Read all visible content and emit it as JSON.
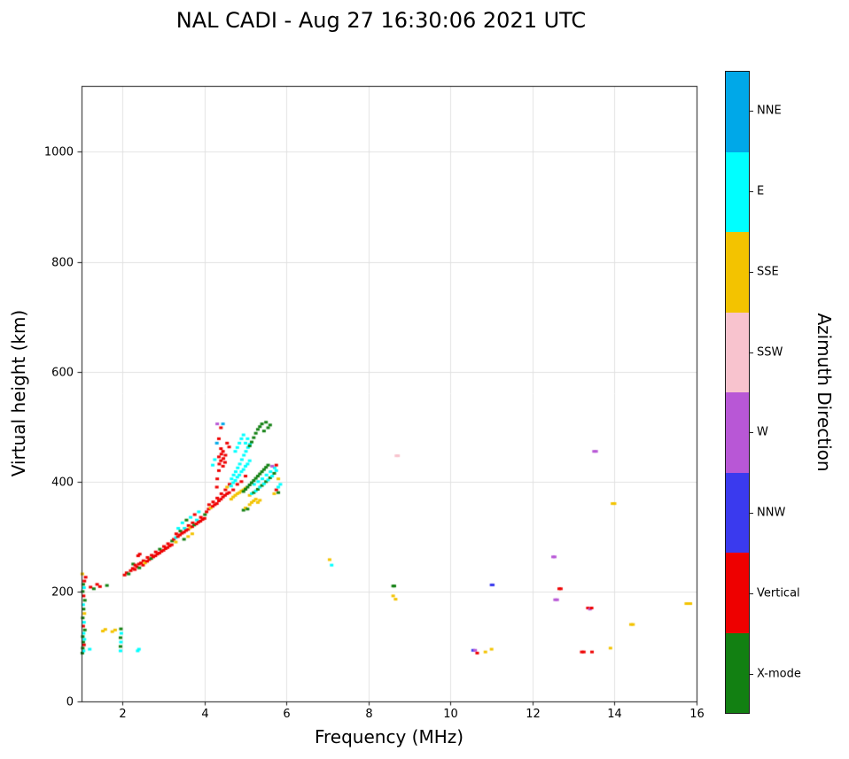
{
  "chart_data": {
    "type": "scatter",
    "title": "NAL CADI - Aug 27 16:30:06 2021 UTC",
    "xlabel": "Frequency (MHz)",
    "ylabel": "Virtual height (km)",
    "xlim": [
      1,
      16
    ],
    "ylim": [
      0,
      1120
    ],
    "xticks": [
      2,
      4,
      6,
      8,
      10,
      12,
      14,
      16
    ],
    "yticks": [
      0,
      200,
      400,
      600,
      800,
      1000
    ],
    "grid": true,
    "grid_color": "#e2e2e2",
    "axis_color": "#1a1a1a",
    "colorbar": {
      "label": "Azimuth Direction",
      "categories": [
        {
          "name": "NNE",
          "color": "#00A8E8"
        },
        {
          "name": "E",
          "color": "#00FFFF"
        },
        {
          "name": "SSE",
          "color": "#F3C300"
        },
        {
          "name": "SSW",
          "color": "#F8C3CE"
        },
        {
          "name": "W",
          "color": "#B857D6"
        },
        {
          "name": "NNW",
          "color": "#3A3AEE"
        },
        {
          "name": "Vertical",
          "color": "#EE0000"
        },
        {
          "name": "X-mode",
          "color": "#128012"
        }
      ]
    },
    "points_format": [
      "frequency_mhz",
      "virtual_height_km",
      "category_index"
    ],
    "points": [
      [
        1.02,
        88,
        7
      ],
      [
        1.05,
        92,
        1
      ],
      [
        1.03,
        97,
        7
      ],
      [
        1.06,
        103,
        6
      ],
      [
        1.04,
        108,
        7
      ],
      [
        1.07,
        113,
        1
      ],
      [
        1.03,
        118,
        7
      ],
      [
        1.05,
        124,
        1
      ],
      [
        1.08,
        130,
        7
      ],
      [
        1.04,
        137,
        6
      ],
      [
        1.06,
        144,
        1
      ],
      [
        1.03,
        152,
        7
      ],
      [
        1.07,
        160,
        2
      ],
      [
        1.05,
        168,
        7
      ],
      [
        1.04,
        176,
        1
      ],
      [
        1.08,
        184,
        7
      ],
      [
        1.05,
        192,
        6
      ],
      [
        1.03,
        200,
        7
      ],
      [
        1.06,
        207,
        1
      ],
      [
        1.04,
        213,
        7
      ],
      [
        1.07,
        219,
        6
      ],
      [
        1.1,
        226,
        6
      ],
      [
        1.02,
        232,
        2
      ],
      [
        1.2,
        95,
        1
      ],
      [
        1.22,
        208,
        6
      ],
      [
        1.3,
        205,
        7
      ],
      [
        1.38,
        213,
        6
      ],
      [
        1.45,
        209,
        6
      ],
      [
        1.52,
        128,
        2
      ],
      [
        1.58,
        131,
        2
      ],
      [
        1.62,
        211,
        7
      ],
      [
        1.75,
        127,
        2
      ],
      [
        1.82,
        130,
        2
      ],
      [
        1.95,
        92,
        1
      ],
      [
        1.95,
        100,
        7
      ],
      [
        1.96,
        108,
        1
      ],
      [
        1.95,
        116,
        7
      ],
      [
        1.97,
        124,
        1
      ],
      [
        1.96,
        132,
        7
      ],
      [
        2.05,
        230,
        6
      ],
      [
        2.1,
        234,
        6
      ],
      [
        2.15,
        232,
        7
      ],
      [
        2.37,
        92,
        1
      ],
      [
        2.4,
        95,
        1
      ],
      [
        2.2,
        238,
        6
      ],
      [
        2.25,
        242,
        6
      ],
      [
        2.26,
        250,
        7
      ],
      [
        2.3,
        240,
        6
      ],
      [
        2.31,
        248,
        6
      ],
      [
        2.35,
        245,
        6
      ],
      [
        2.38,
        265,
        6
      ],
      [
        2.42,
        268,
        6
      ],
      [
        2.4,
        250,
        6
      ],
      [
        2.41,
        243,
        7
      ],
      [
        2.45,
        252,
        6
      ],
      [
        2.5,
        248,
        6
      ],
      [
        2.51,
        256,
        6
      ],
      [
        2.55,
        252,
        2
      ],
      [
        2.6,
        255,
        6
      ],
      [
        2.61,
        262,
        6
      ],
      [
        2.65,
        258,
        6
      ],
      [
        2.7,
        260,
        7
      ],
      [
        2.71,
        266,
        6
      ],
      [
        2.75,
        263,
        6
      ],
      [
        2.8,
        265,
        6
      ],
      [
        2.81,
        272,
        6
      ],
      [
        2.85,
        268,
        6
      ],
      [
        2.9,
        270,
        6
      ],
      [
        2.91,
        277,
        7
      ],
      [
        2.95,
        273,
        6
      ],
      [
        3.0,
        275,
        6
      ],
      [
        3.01,
        282,
        6
      ],
      [
        3.05,
        278,
        6
      ],
      [
        3.1,
        280,
        6
      ],
      [
        3.11,
        287,
        6
      ],
      [
        3.15,
        283,
        6
      ],
      [
        3.2,
        285,
        6
      ],
      [
        3.21,
        292,
        7
      ],
      [
        3.25,
        295,
        6
      ],
      [
        3.3,
        298,
        1
      ],
      [
        3.31,
        305,
        6
      ],
      [
        3.3,
        290,
        2
      ],
      [
        3.35,
        300,
        6
      ],
      [
        3.36,
        315,
        1
      ],
      [
        3.4,
        303,
        6
      ],
      [
        3.41,
        310,
        7
      ],
      [
        3.45,
        306,
        6
      ],
      [
        3.46,
        325,
        1
      ],
      [
        3.5,
        308,
        6
      ],
      [
        3.51,
        315,
        1
      ],
      [
        3.5,
        295,
        7
      ],
      [
        3.55,
        311,
        6
      ],
      [
        3.56,
        330,
        7
      ],
      [
        3.6,
        313,
        6
      ],
      [
        3.61,
        320,
        6
      ],
      [
        3.6,
        300,
        2
      ],
      [
        3.65,
        316,
        2
      ],
      [
        3.66,
        335,
        1
      ],
      [
        3.7,
        318,
        6
      ],
      [
        3.71,
        325,
        6
      ],
      [
        3.7,
        305,
        2
      ],
      [
        3.75,
        321,
        7
      ],
      [
        3.76,
        340,
        6
      ],
      [
        3.8,
        323,
        6
      ],
      [
        3.81,
        330,
        1
      ],
      [
        3.85,
        326,
        6
      ],
      [
        3.86,
        345,
        1
      ],
      [
        3.9,
        328,
        6
      ],
      [
        3.91,
        335,
        6
      ],
      [
        3.95,
        331,
        6
      ],
      [
        4.0,
        333,
        6
      ],
      [
        4.01,
        340,
        7
      ],
      [
        4.05,
        345,
        6
      ],
      [
        4.1,
        350,
        6
      ],
      [
        4.11,
        358,
        6
      ],
      [
        4.15,
        352,
        2
      ],
      [
        4.2,
        355,
        6
      ],
      [
        4.21,
        363,
        6
      ],
      [
        4.25,
        358,
        6
      ],
      [
        4.2,
        430,
        1
      ],
      [
        4.25,
        440,
        1
      ],
      [
        4.3,
        360,
        6
      ],
      [
        4.31,
        370,
        6
      ],
      [
        4.3,
        390,
        6
      ],
      [
        4.31,
        405,
        6
      ],
      [
        4.3,
        470,
        0
      ],
      [
        4.31,
        505,
        4
      ],
      [
        4.35,
        365,
        6
      ],
      [
        4.35,
        420,
        6
      ],
      [
        4.36,
        432,
        6
      ],
      [
        4.35,
        445,
        6
      ],
      [
        4.35,
        478,
        6
      ],
      [
        4.4,
        368,
        6
      ],
      [
        4.41,
        378,
        6
      ],
      [
        4.4,
        438,
        6
      ],
      [
        4.41,
        450,
        6
      ],
      [
        4.4,
        460,
        6
      ],
      [
        4.4,
        498,
        6
      ],
      [
        4.45,
        372,
        6
      ],
      [
        4.45,
        428,
        6
      ],
      [
        4.46,
        442,
        6
      ],
      [
        4.45,
        455,
        6
      ],
      [
        4.45,
        505,
        0
      ],
      [
        4.5,
        375,
        6
      ],
      [
        4.51,
        385,
        6
      ],
      [
        4.5,
        435,
        6
      ],
      [
        4.51,
        448,
        6
      ],
      [
        4.55,
        378,
        6
      ],
      [
        4.55,
        390,
        2
      ],
      [
        4.55,
        470,
        6
      ],
      [
        4.6,
        380,
        6
      ],
      [
        4.61,
        395,
        6
      ],
      [
        4.6,
        463,
        6
      ],
      [
        4.65,
        392,
        1
      ],
      [
        4.66,
        405,
        1
      ],
      [
        4.7,
        398,
        1
      ],
      [
        4.71,
        412,
        1
      ],
      [
        4.75,
        402,
        1
      ],
      [
        4.76,
        418,
        1
      ],
      [
        4.8,
        408,
        1
      ],
      [
        4.81,
        425,
        1
      ],
      [
        4.85,
        412,
        1
      ],
      [
        4.86,
        432,
        1
      ],
      [
        4.9,
        418,
        1
      ],
      [
        4.91,
        440,
        1
      ],
      [
        4.95,
        422,
        1
      ],
      [
        4.96,
        448,
        1
      ],
      [
        5.0,
        428,
        1
      ],
      [
        5.01,
        455,
        1
      ],
      [
        5.05,
        432,
        1
      ],
      [
        5.06,
        462,
        1
      ],
      [
        5.1,
        438,
        1
      ],
      [
        5.11,
        468,
        1
      ],
      [
        4.65,
        368,
        2
      ],
      [
        4.7,
        372,
        2
      ],
      [
        4.75,
        375,
        2
      ],
      [
        4.8,
        378,
        2
      ],
      [
        4.85,
        380,
        2
      ],
      [
        4.9,
        383,
        2
      ],
      [
        4.95,
        385,
        2
      ],
      [
        5.0,
        388,
        2
      ],
      [
        4.7,
        385,
        6
      ],
      [
        4.8,
        395,
        6
      ],
      [
        4.9,
        400,
        6
      ],
      [
        5.0,
        410,
        6
      ],
      [
        4.75,
        455,
        1
      ],
      [
        4.8,
        462,
        1
      ],
      [
        4.85,
        470,
        1
      ],
      [
        4.9,
        478,
        1
      ],
      [
        4.95,
        485,
        1
      ],
      [
        5.0,
        470,
        1
      ],
      [
        5.05,
        478,
        1
      ],
      [
        5.1,
        375,
        2
      ],
      [
        5.15,
        378,
        1
      ],
      [
        5.2,
        380,
        7
      ],
      [
        5.21,
        395,
        1
      ],
      [
        5.25,
        383,
        1
      ],
      [
        5.3,
        386,
        7
      ],
      [
        5.31,
        400,
        1
      ],
      [
        5.35,
        390,
        1
      ],
      [
        5.4,
        393,
        7
      ],
      [
        5.41,
        405,
        1
      ],
      [
        5.45,
        396,
        1
      ],
      [
        5.5,
        400,
        7
      ],
      [
        5.51,
        412,
        1
      ],
      [
        5.55,
        403,
        1
      ],
      [
        5.6,
        407,
        7
      ],
      [
        5.61,
        418,
        1
      ],
      [
        5.65,
        410,
        1
      ],
      [
        5.7,
        415,
        7
      ],
      [
        5.71,
        425,
        1
      ],
      [
        5.75,
        420,
        1
      ],
      [
        4.95,
        382,
        7
      ],
      [
        5.0,
        386,
        7
      ],
      [
        5.05,
        390,
        7
      ],
      [
        5.1,
        394,
        7
      ],
      [
        5.15,
        398,
        7
      ],
      [
        5.2,
        402,
        7
      ],
      [
        5.25,
        406,
        7
      ],
      [
        5.3,
        410,
        7
      ],
      [
        5.35,
        414,
        7
      ],
      [
        5.4,
        418,
        7
      ],
      [
        5.45,
        422,
        7
      ],
      [
        5.5,
        426,
        7
      ],
      [
        5.55,
        430,
        7
      ],
      [
        5.2,
        480,
        7
      ],
      [
        5.25,
        488,
        7
      ],
      [
        5.3,
        495,
        7
      ],
      [
        5.35,
        500,
        7
      ],
      [
        5.4,
        505,
        7
      ],
      [
        5.5,
        508,
        7
      ],
      [
        5.55,
        498,
        7
      ],
      [
        5.6,
        503,
        7
      ],
      [
        5.45,
        492,
        7
      ],
      [
        5.15,
        472,
        7
      ],
      [
        5.1,
        465,
        7
      ],
      [
        5.1,
        358,
        2
      ],
      [
        5.15,
        362,
        2
      ],
      [
        5.2,
        365,
        2
      ],
      [
        5.25,
        368,
        2
      ],
      [
        5.3,
        362,
        2
      ],
      [
        5.35,
        366,
        2
      ],
      [
        4.95,
        348,
        7
      ],
      [
        5.0,
        352,
        2
      ],
      [
        5.05,
        350,
        7
      ],
      [
        5.75,
        385,
        6
      ],
      [
        5.8,
        390,
        1
      ],
      [
        5.8,
        405,
        2
      ],
      [
        5.85,
        395,
        1
      ],
      [
        5.8,
        380,
        7
      ],
      [
        5.7,
        378,
        2
      ],
      [
        5.65,
        428,
        4
      ],
      [
        5.75,
        430,
        6
      ],
      [
        7.05,
        258,
        2
      ],
      [
        7.1,
        248,
        1
      ],
      [
        8.6,
        210,
        7
      ],
      [
        8.63,
        210,
        7
      ],
      [
        8.6,
        192,
        2
      ],
      [
        8.66,
        186,
        2
      ],
      [
        8.68,
        447,
        3
      ],
      [
        8.72,
        447,
        3
      ],
      [
        10.55,
        93,
        5
      ],
      [
        10.6,
        93,
        4
      ],
      [
        10.65,
        88,
        6
      ],
      [
        10.85,
        90,
        2
      ],
      [
        11.0,
        95,
        2
      ],
      [
        11.0,
        212,
        5
      ],
      [
        11.03,
        212,
        5
      ],
      [
        12.5,
        263,
        4
      ],
      [
        12.54,
        263,
        4
      ],
      [
        12.55,
        185,
        4
      ],
      [
        12.6,
        185,
        4
      ],
      [
        12.65,
        205,
        6
      ],
      [
        12.69,
        205,
        6
      ],
      [
        13.2,
        90,
        6
      ],
      [
        13.25,
        90,
        6
      ],
      [
        13.45,
        90,
        6
      ],
      [
        13.35,
        170,
        6
      ],
      [
        13.4,
        168,
        4
      ],
      [
        13.44,
        170,
        6
      ],
      [
        13.5,
        455,
        4
      ],
      [
        13.55,
        455,
        4
      ],
      [
        13.9,
        97,
        2
      ],
      [
        13.95,
        360,
        2
      ],
      [
        14.0,
        360,
        2
      ],
      [
        14.4,
        140,
        2
      ],
      [
        14.45,
        140,
        2
      ],
      [
        15.75,
        178,
        2
      ],
      [
        15.8,
        178,
        2
      ],
      [
        15.85,
        178,
        2
      ]
    ]
  }
}
